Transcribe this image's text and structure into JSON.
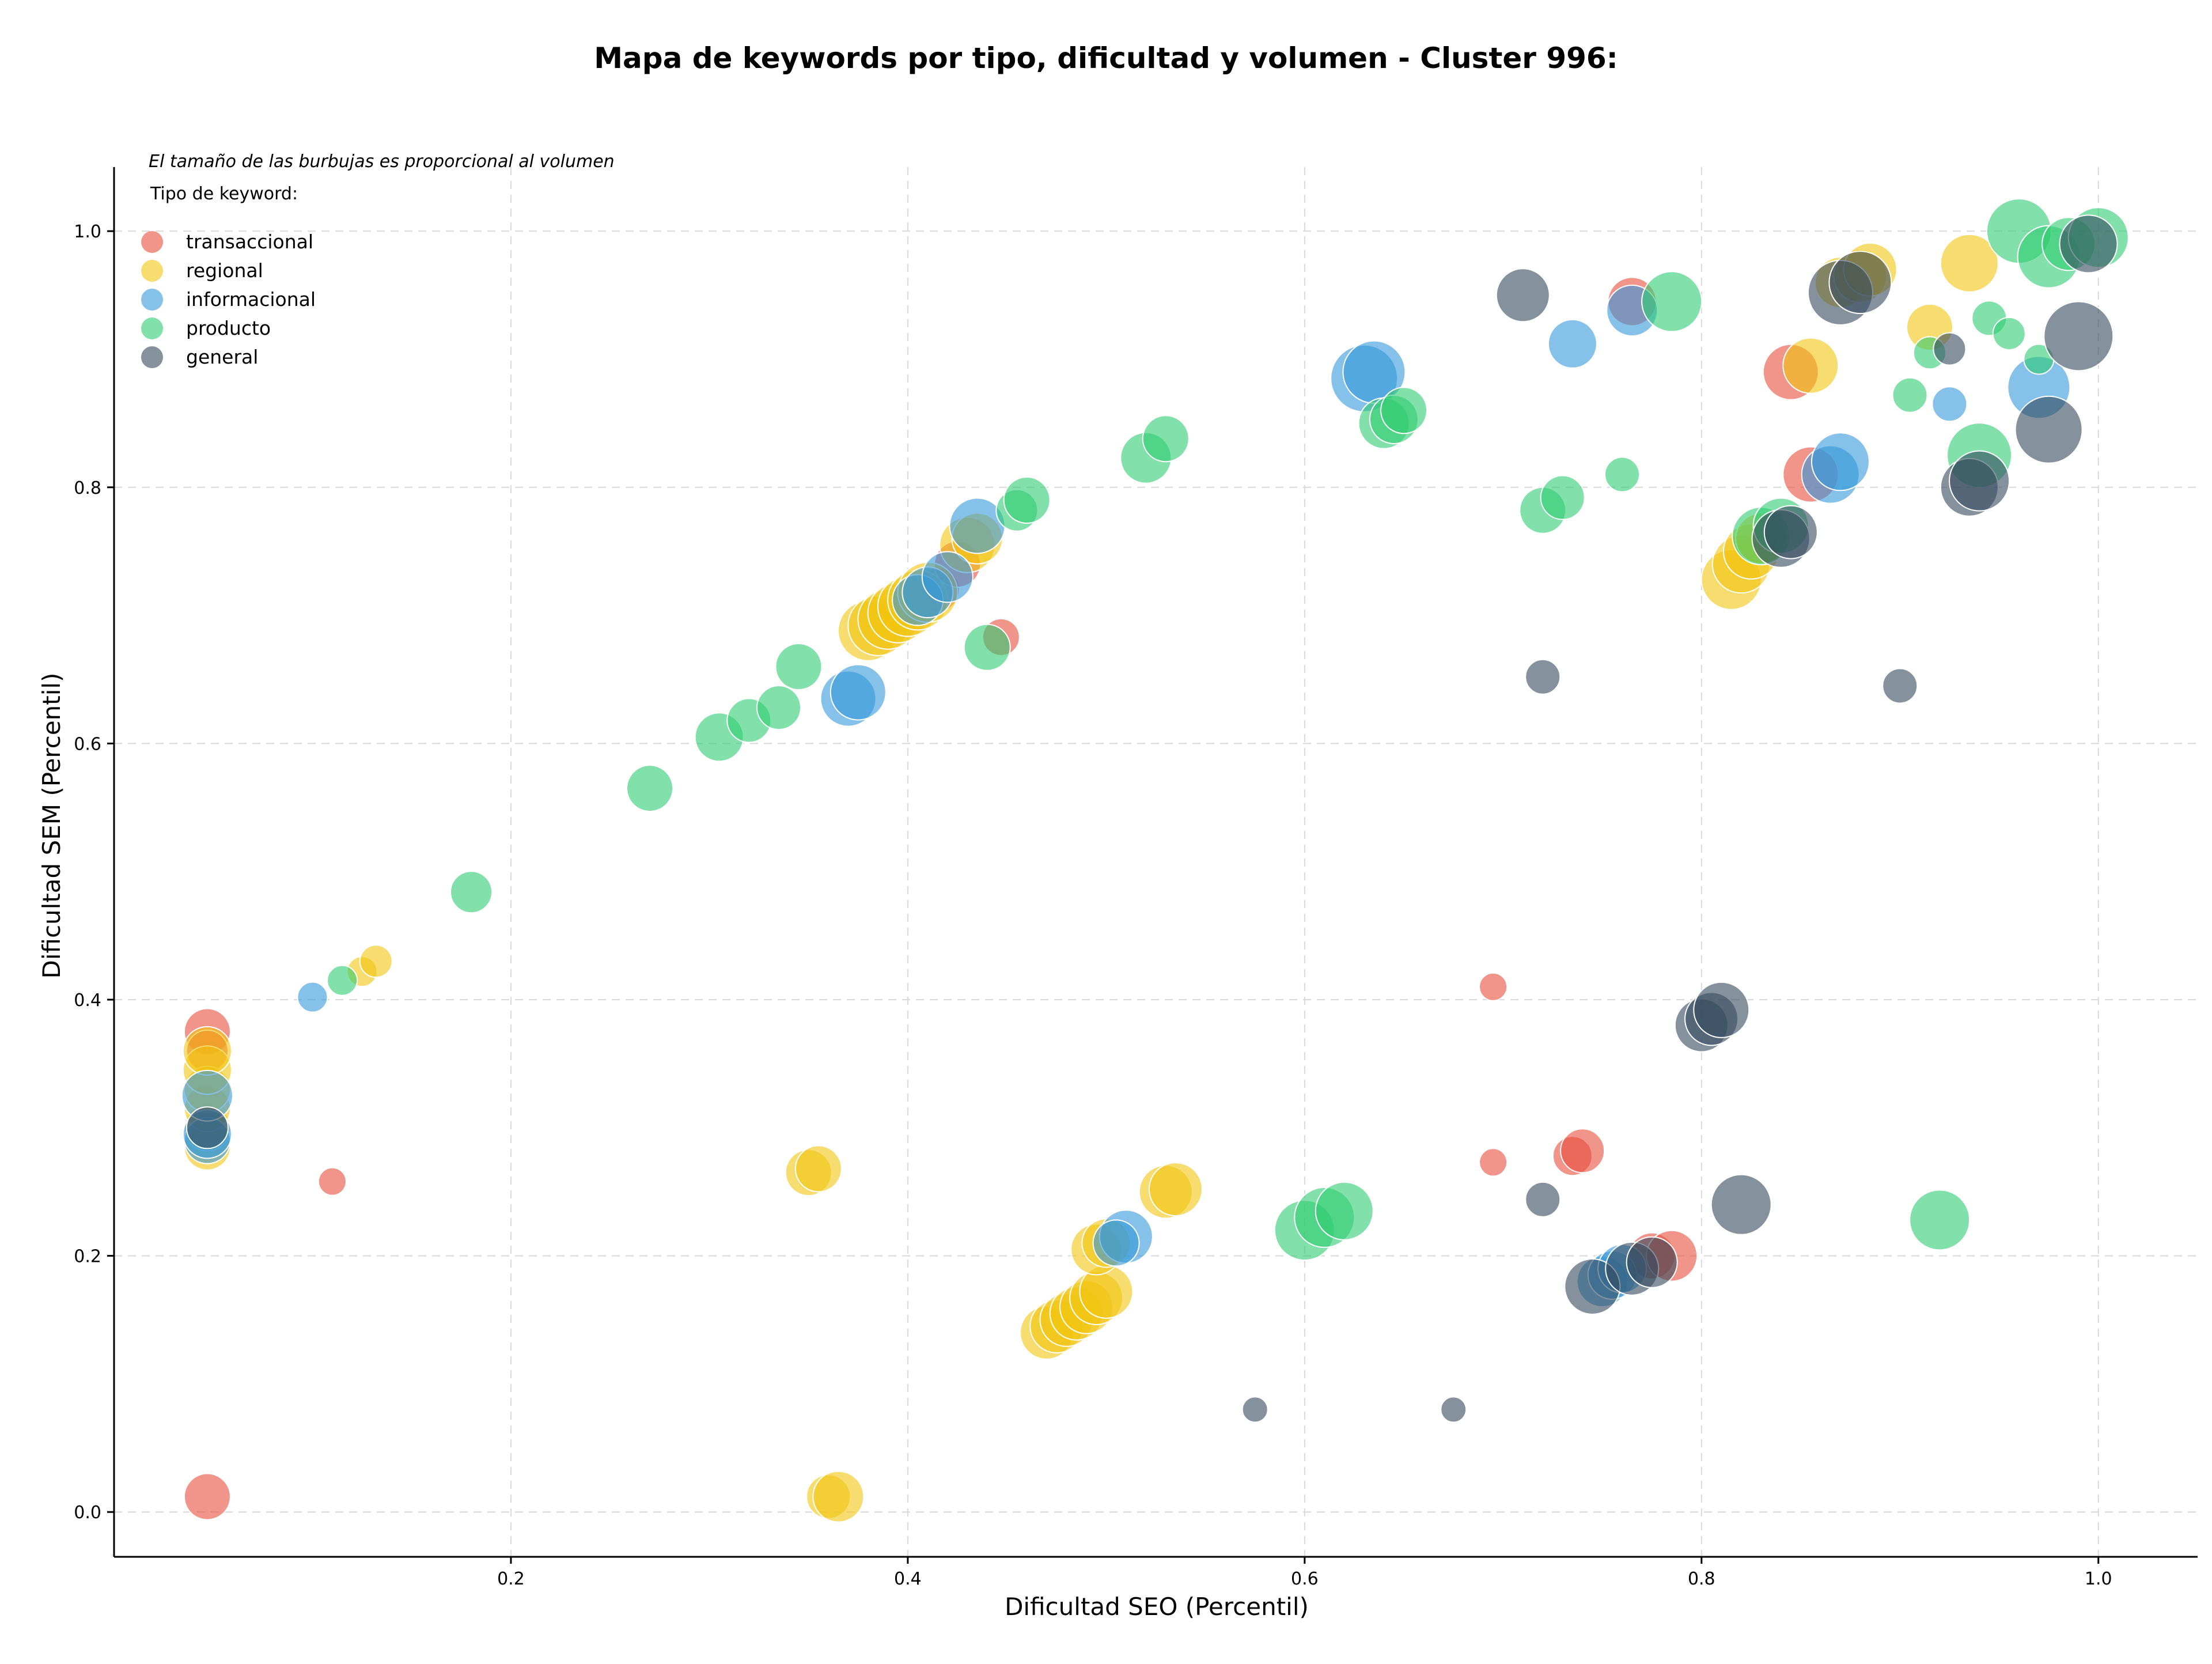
{
  "chart_data": {
    "type": "scatter",
    "title": "Mapa de keywords por tipo, dificultad y volumen - Cluster 996:",
    "xlabel": "Dificultad SEO (Percentil)",
    "ylabel": "Dificultad SEM (Percentil)",
    "xlim": [
      0.0,
      1.05
    ],
    "ylim": [
      -0.035,
      1.05
    ],
    "xticks": [
      "0.2",
      "0.4",
      "0.6",
      "0.8",
      "1.0"
    ],
    "yticks": [
      "0.0",
      "0.2",
      "0.4",
      "0.6",
      "0.8",
      "1.0"
    ],
    "grid": true,
    "note": "El tamaño de las burbujas es proporcional al volumen",
    "legend_title": "Tipo de keyword:",
    "legend_position": "top-left",
    "series": [
      {
        "name": "transaccional",
        "color": "#e74c3c",
        "points": [
          [
            0.047,
            0.012,
            40
          ],
          [
            0.11,
            0.258,
            24
          ],
          [
            0.047,
            0.375,
            40
          ],
          [
            0.047,
            0.36,
            36
          ],
          [
            0.447,
            0.683,
            32
          ],
          [
            0.415,
            0.72,
            38
          ],
          [
            0.425,
            0.74,
            40
          ],
          [
            0.695,
            0.41,
            24
          ],
          [
            0.695,
            0.273,
            24
          ],
          [
            0.735,
            0.278,
            34
          ],
          [
            0.74,
            0.282,
            38
          ],
          [
            0.775,
            0.2,
            40
          ],
          [
            0.785,
            0.2,
            44
          ],
          [
            0.765,
            0.945,
            42
          ],
          [
            0.845,
            0.89,
            48
          ],
          [
            0.855,
            0.81,
            48
          ]
        ]
      },
      {
        "name": "regional",
        "color": "#f1c40f",
        "points": [
          [
            0.047,
            0.285,
            40
          ],
          [
            0.047,
            0.3,
            40
          ],
          [
            0.047,
            0.315,
            40
          ],
          [
            0.047,
            0.33,
            40
          ],
          [
            0.047,
            0.345,
            42
          ],
          [
            0.047,
            0.36,
            42
          ],
          [
            0.125,
            0.422,
            26
          ],
          [
            0.132,
            0.43,
            28
          ],
          [
            0.35,
            0.265,
            40
          ],
          [
            0.355,
            0.268,
            40
          ],
          [
            0.36,
            0.012,
            38
          ],
          [
            0.365,
            0.012,
            44
          ],
          [
            0.38,
            0.688,
            52
          ],
          [
            0.385,
            0.692,
            52
          ],
          [
            0.39,
            0.697,
            52
          ],
          [
            0.395,
            0.702,
            52
          ],
          [
            0.4,
            0.707,
            52
          ],
          [
            0.405,
            0.712,
            52
          ],
          [
            0.41,
            0.718,
            52
          ],
          [
            0.43,
            0.755,
            48
          ],
          [
            0.435,
            0.76,
            44
          ],
          [
            0.47,
            0.14,
            46
          ],
          [
            0.475,
            0.145,
            46
          ],
          [
            0.48,
            0.15,
            46
          ],
          [
            0.485,
            0.155,
            46
          ],
          [
            0.49,
            0.16,
            46
          ],
          [
            0.495,
            0.167,
            46
          ],
          [
            0.5,
            0.172,
            46
          ],
          [
            0.495,
            0.205,
            44
          ],
          [
            0.5,
            0.21,
            42
          ],
          [
            0.53,
            0.25,
            46
          ],
          [
            0.535,
            0.252,
            46
          ],
          [
            0.815,
            0.728,
            52
          ],
          [
            0.82,
            0.74,
            50
          ],
          [
            0.825,
            0.75,
            48
          ],
          [
            0.83,
            0.76,
            44
          ],
          [
            0.855,
            0.895,
            48
          ],
          [
            0.87,
            0.96,
            44
          ],
          [
            0.88,
            0.965,
            46
          ],
          [
            0.885,
            0.97,
            46
          ],
          [
            0.915,
            0.925,
            40
          ],
          [
            0.935,
            0.975,
            50
          ]
        ]
      },
      {
        "name": "informacional",
        "color": "#3498db",
        "points": [
          [
            0.1,
            0.402,
            26
          ],
          [
            0.047,
            0.29,
            40
          ],
          [
            0.047,
            0.295,
            42
          ],
          [
            0.047,
            0.325,
            44
          ],
          [
            0.37,
            0.635,
            48
          ],
          [
            0.375,
            0.64,
            48
          ],
          [
            0.405,
            0.712,
            44
          ],
          [
            0.41,
            0.718,
            44
          ],
          [
            0.42,
            0.73,
            44
          ],
          [
            0.435,
            0.77,
            48
          ],
          [
            0.51,
            0.215,
            46
          ],
          [
            0.505,
            0.21,
            40
          ],
          [
            0.63,
            0.885,
            58
          ],
          [
            0.635,
            0.89,
            54
          ],
          [
            0.735,
            0.912,
            42
          ],
          [
            0.765,
            0.938,
            44
          ],
          [
            0.75,
            0.18,
            44
          ],
          [
            0.755,
            0.185,
            42
          ],
          [
            0.76,
            0.19,
            42
          ],
          [
            0.865,
            0.81,
            50
          ],
          [
            0.87,
            0.82,
            50
          ],
          [
            0.925,
            0.865,
            30
          ],
          [
            0.97,
            0.878,
            54
          ]
        ]
      },
      {
        "name": "producto",
        "color": "#2ecc71",
        "points": [
          [
            0.115,
            0.415,
            26
          ],
          [
            0.18,
            0.484,
            36
          ],
          [
            0.27,
            0.565,
            40
          ],
          [
            0.305,
            0.605,
            42
          ],
          [
            0.32,
            0.618,
            38
          ],
          [
            0.335,
            0.628,
            38
          ],
          [
            0.345,
            0.66,
            40
          ],
          [
            0.44,
            0.675,
            40
          ],
          [
            0.455,
            0.782,
            36
          ],
          [
            0.46,
            0.79,
            40
          ],
          [
            0.52,
            0.823,
            44
          ],
          [
            0.53,
            0.838,
            40
          ],
          [
            0.6,
            0.22,
            52
          ],
          [
            0.61,
            0.23,
            52
          ],
          [
            0.62,
            0.235,
            50
          ],
          [
            0.64,
            0.85,
            44
          ],
          [
            0.645,
            0.853,
            42
          ],
          [
            0.65,
            0.86,
            40
          ],
          [
            0.72,
            0.782,
            40
          ],
          [
            0.73,
            0.792,
            38
          ],
          [
            0.76,
            0.81,
            30
          ],
          [
            0.785,
            0.945,
            52
          ],
          [
            0.83,
            0.762,
            50
          ],
          [
            0.84,
            0.77,
            48
          ],
          [
            0.905,
            0.872,
            30
          ],
          [
            0.915,
            0.905,
            28
          ],
          [
            0.92,
            0.228,
            52
          ],
          [
            0.94,
            0.825,
            56
          ],
          [
            0.945,
            0.932,
            30
          ],
          [
            0.955,
            0.92,
            28
          ],
          [
            0.97,
            0.9,
            26
          ],
          [
            0.96,
            1.0,
            56
          ],
          [
            0.975,
            0.98,
            54
          ],
          [
            0.985,
            0.99,
            46
          ],
          [
            1.0,
            0.995,
            52
          ]
        ]
      },
      {
        "name": "general",
        "color": "#34495e",
        "points": [
          [
            0.047,
            0.3,
            36
          ],
          [
            0.575,
            0.08,
            22
          ],
          [
            0.675,
            0.08,
            22
          ],
          [
            0.71,
            0.95,
            46
          ],
          [
            0.72,
            0.652,
            30
          ],
          [
            0.72,
            0.244,
            30
          ],
          [
            0.745,
            0.176,
            48
          ],
          [
            0.765,
            0.19,
            46
          ],
          [
            0.775,
            0.195,
            44
          ],
          [
            0.8,
            0.38,
            46
          ],
          [
            0.805,
            0.385,
            46
          ],
          [
            0.81,
            0.392,
            48
          ],
          [
            0.82,
            0.24,
            52
          ],
          [
            0.84,
            0.76,
            50
          ],
          [
            0.845,
            0.765,
            46
          ],
          [
            0.87,
            0.952,
            56
          ],
          [
            0.88,
            0.96,
            54
          ],
          [
            0.9,
            0.645,
            30
          ],
          [
            0.925,
            0.908,
            28
          ],
          [
            0.935,
            0.8,
            50
          ],
          [
            0.94,
            0.805,
            52
          ],
          [
            0.975,
            0.845,
            58
          ],
          [
            0.99,
            0.918,
            60
          ],
          [
            0.995,
            0.99,
            50
          ]
        ]
      }
    ]
  }
}
